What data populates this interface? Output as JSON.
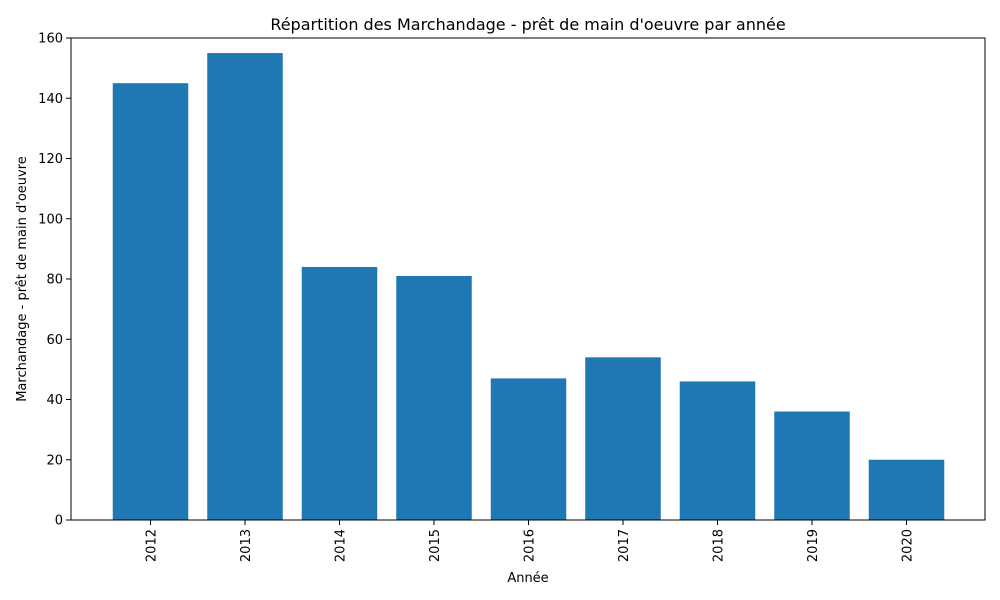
{
  "chart_data": {
    "type": "bar",
    "title": "Répartition des Marchandage - prêt de main d'oeuvre par année",
    "xlabel": "Année",
    "ylabel": "Marchandage - prêt de main d'oeuvre",
    "categories": [
      "2012",
      "2013",
      "2014",
      "2015",
      "2016",
      "2017",
      "2018",
      "2019",
      "2020"
    ],
    "values": [
      145,
      155,
      84,
      81,
      47,
      54,
      46,
      36,
      20
    ],
    "ylim": [
      0,
      160
    ],
    "yticks": [
      0,
      20,
      40,
      60,
      80,
      100,
      120,
      140,
      160
    ],
    "grid": false,
    "legend": "none",
    "bar_color": "#1f77b4",
    "xtick_rotation": "vertical"
  }
}
